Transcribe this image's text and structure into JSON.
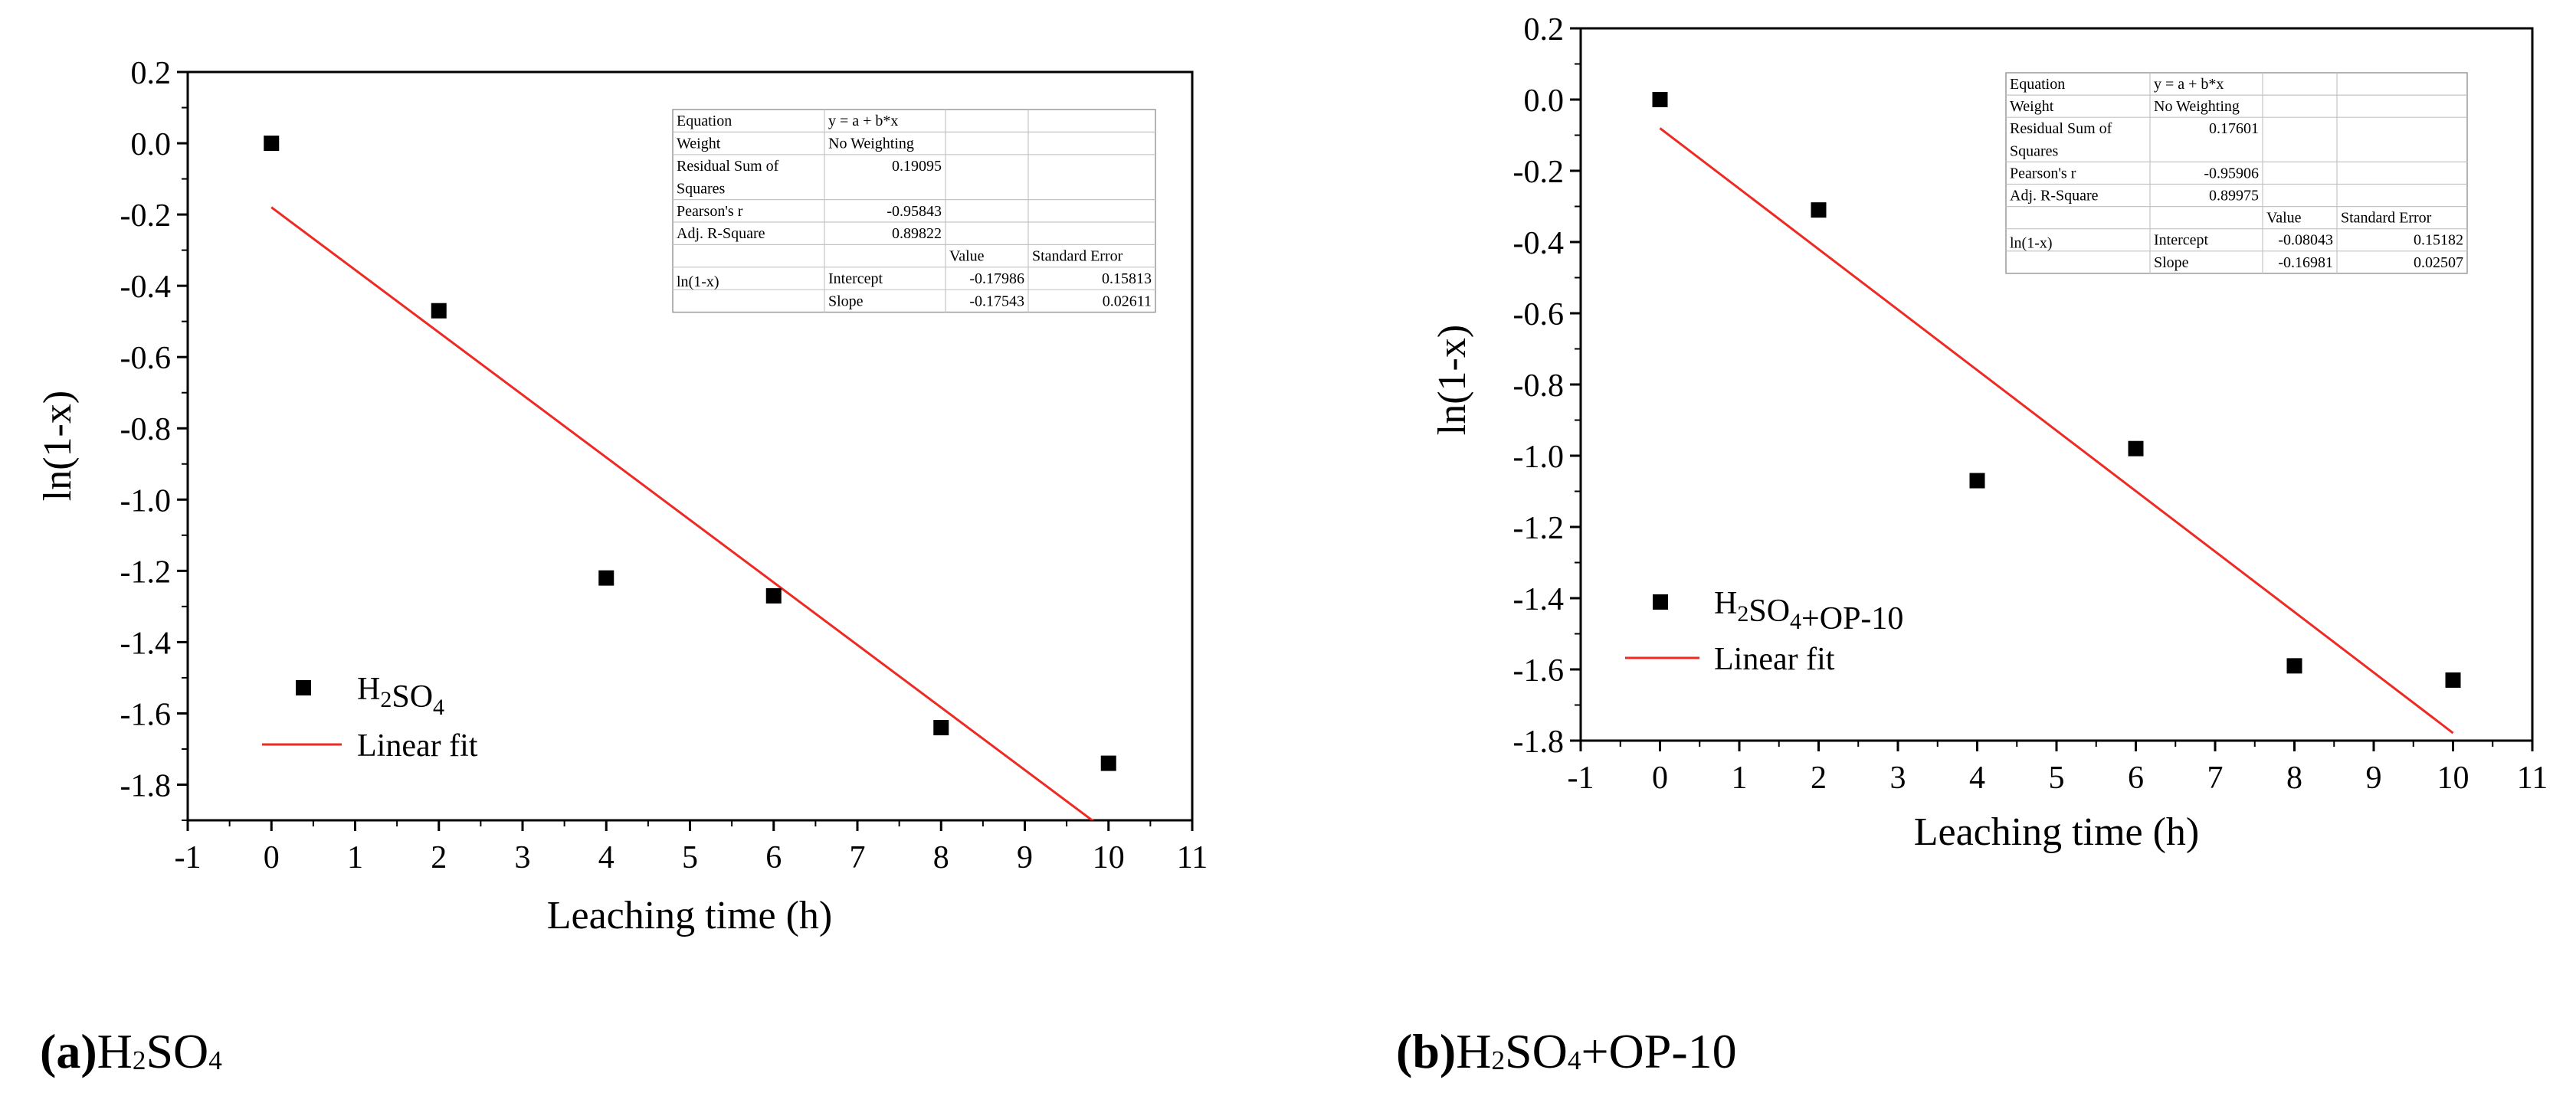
{
  "chart_data": [
    {
      "type": "scatter",
      "id": "a",
      "title": "",
      "xlabel": "Leaching time (h)",
      "ylabel": "ln(1-x)",
      "xlim": [
        -1,
        11
      ],
      "ylim": [
        -1.9,
        0.2
      ],
      "xticks": [
        -1,
        0,
        1,
        2,
        3,
        4,
        5,
        6,
        7,
        8,
        9,
        10,
        11
      ],
      "yticks": [
        0.2,
        0.0,
        -0.2,
        -0.4,
        -0.6,
        -0.8,
        -1.0,
        -1.2,
        -1.4,
        -1.6,
        -1.8
      ],
      "xtick_labels": [
        "-1",
        "0",
        "1",
        "2",
        "3",
        "4",
        "5",
        "6",
        "7",
        "8",
        "9",
        "10",
        "11"
      ],
      "ytick_labels": [
        "0.2",
        "0.0",
        "-0.2",
        "-0.4",
        "-0.6",
        "-0.8",
        "-1.0",
        "-1.2",
        "-1.4",
        "-1.6",
        "-1.8"
      ],
      "grid": false,
      "legend_position": "bottom-left",
      "series": [
        {
          "name": "H2SO4",
          "kind": "scatter",
          "marker": "square",
          "color": "#000000",
          "x": [
            0,
            2,
            4,
            6,
            8,
            10
          ],
          "y": [
            0.0,
            -0.47,
            -1.22,
            -1.27,
            -1.64,
            -1.74
          ]
        },
        {
          "name": "Linear fit",
          "kind": "line",
          "color": "#ee2a24",
          "intercept": -0.17986,
          "slope": -0.17543,
          "x_range": [
            0,
            10
          ]
        }
      ],
      "legend": {
        "entries": [
          {
            "formula": {
              "pre": "H",
              "sub": "2",
              "post": "SO",
              "sub2": "4",
              "tail": ""
            }
          },
          {
            "label": "Linear fit"
          }
        ]
      },
      "stats_table": {
        "rows": [
          [
            "Equation",
            "y = a + b*x",
            "",
            ""
          ],
          [
            "Weight",
            "No Weighting",
            "",
            ""
          ],
          [
            "Residual Sum of",
            "0.19095",
            "",
            ""
          ],
          [
            "Squares",
            "",
            "",
            ""
          ],
          [
            "Pearson's r",
            "-0.95843",
            "",
            ""
          ],
          [
            "Adj. R-Square",
            "0.89822",
            "",
            ""
          ],
          [
            "",
            "",
            "Value",
            "Standard Error"
          ],
          [
            "",
            "Intercept",
            "-0.17986",
            "0.15813"
          ],
          [
            "ln(1-x)",
            "Slope",
            "-0.17543",
            "0.02611"
          ]
        ]
      },
      "caption": {
        "letter": "(a)",
        "pre": "H",
        "sub": "2",
        "post": "SO",
        "sub2": "4",
        "tail": ""
      }
    },
    {
      "type": "scatter",
      "id": "b",
      "title": "",
      "xlabel": "Leaching time (h)",
      "ylabel": "ln(1-x)",
      "xlim": [
        -1,
        11
      ],
      "ylim": [
        -1.8,
        0.2
      ],
      "xticks": [
        -1,
        0,
        1,
        2,
        3,
        4,
        5,
        6,
        7,
        8,
        9,
        10,
        11
      ],
      "yticks": [
        0.2,
        0.0,
        -0.2,
        -0.4,
        -0.6,
        -0.8,
        -1.0,
        -1.2,
        -1.4,
        -1.6,
        -1.8
      ],
      "xtick_labels": [
        "-1",
        "0",
        "1",
        "2",
        "3",
        "4",
        "5",
        "6",
        "7",
        "8",
        "9",
        "10",
        "11"
      ],
      "ytick_labels": [
        "0.2",
        "0.0",
        "-0.2",
        "-0.4",
        "-0.6",
        "-0.8",
        "-1.0",
        "-1.2",
        "-1.4",
        "-1.6",
        "-1.8"
      ],
      "grid": false,
      "legend_position": "bottom-left",
      "series": [
        {
          "name": "H2SO4+OP-10",
          "kind": "scatter",
          "marker": "square",
          "color": "#000000",
          "x": [
            0,
            2,
            4,
            6,
            8,
            10
          ],
          "y": [
            0.0,
            -0.31,
            -1.07,
            -0.98,
            -1.59,
            -1.63
          ]
        },
        {
          "name": "Linear fit",
          "kind": "line",
          "color": "#ee2a24",
          "intercept": -0.08043,
          "slope": -0.16981,
          "x_range": [
            0,
            10
          ]
        }
      ],
      "legend": {
        "entries": [
          {
            "formula": {
              "pre": "H",
              "sub": "2",
              "post": "SO",
              "sub2": "4",
              "tail": "+OP-10"
            }
          },
          {
            "label": "Linear fit"
          }
        ]
      },
      "stats_table": {
        "rows": [
          [
            "Equation",
            "y = a + b*x",
            "",
            ""
          ],
          [
            "Weight",
            "No Weighting",
            "",
            ""
          ],
          [
            "Residual Sum of",
            "0.17601",
            "",
            ""
          ],
          [
            "Squares",
            "",
            "",
            ""
          ],
          [
            "Pearson's r",
            "-0.95906",
            "",
            ""
          ],
          [
            "Adj. R-Square",
            "0.89975",
            "",
            ""
          ],
          [
            "",
            "",
            "Value",
            "Standard Error"
          ],
          [
            "",
            "Intercept",
            "-0.08043",
            "0.15182"
          ],
          [
            "ln(1-x)",
            "Slope",
            "-0.16981",
            "0.02507"
          ]
        ]
      },
      "caption": {
        "letter": "(b)",
        "pre": "H",
        "sub": "2",
        "post": "SO",
        "sub2": "4",
        "tail": "+OP-10"
      }
    }
  ]
}
